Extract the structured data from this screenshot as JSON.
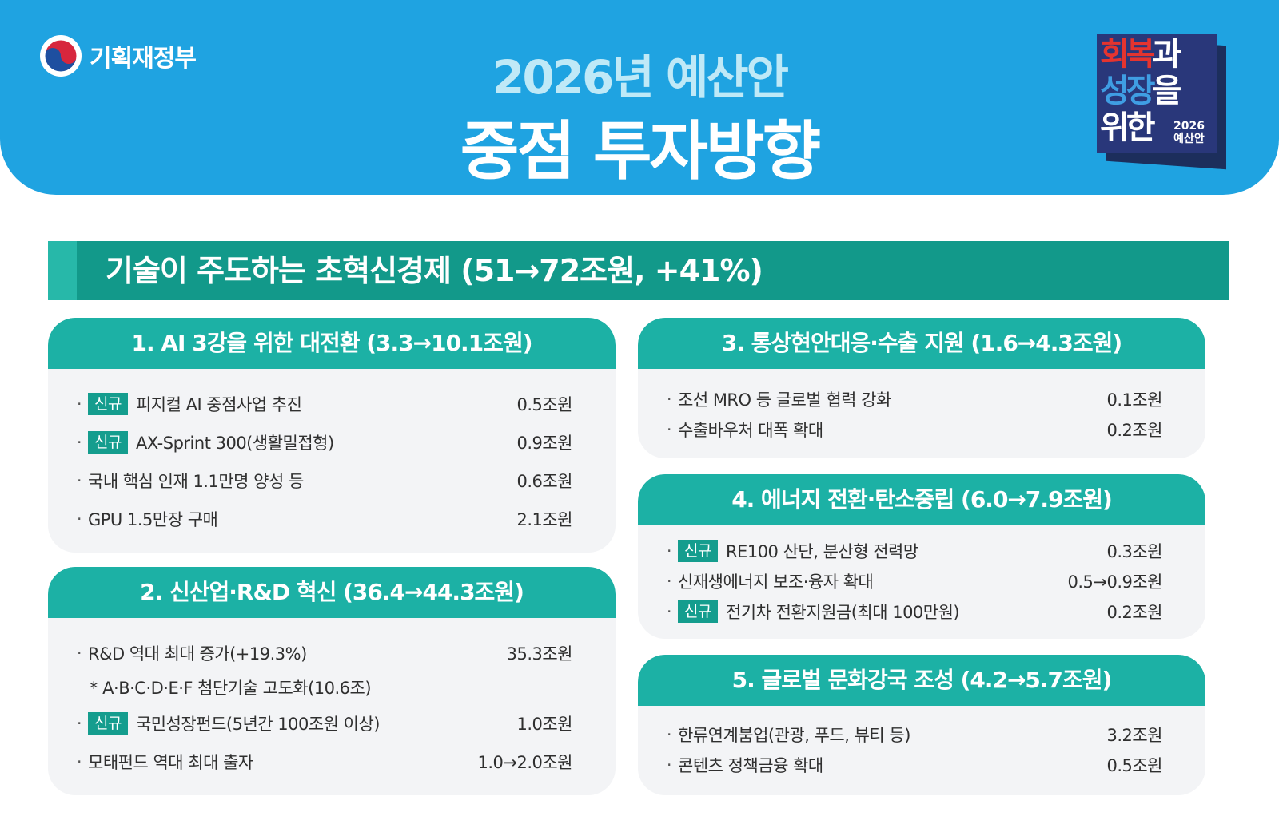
{
  "header": {
    "org_name": "기획재정부",
    "title_year": "2026년 예산안",
    "title_main": "중점 투자방향",
    "badge": {
      "line1_red": "회복",
      "line1_white": "과",
      "line2_blue": "성장",
      "line2_white": "을",
      "line3_white": "위한",
      "year": "2026",
      "year_sub": "예산안"
    }
  },
  "banner": {
    "title": "기술이 주도하는 초혁신경제 (51→72조원, +41%)"
  },
  "tag_new": "신규",
  "cards": {
    "c1": {
      "title": "1. AI 3강을 위한 대전환 (3.3→10.1조원)",
      "items": [
        {
          "label": "피지컬 AI 중점사업 추진",
          "value": "0.5조원"
        },
        {
          "label": "AX-Sprint 300(생활밀접형)",
          "value": "0.9조원"
        },
        {
          "label": "국내 핵심 인재 1.1만명 양성 등",
          "value": "0.6조원"
        },
        {
          "label": "GPU 1.5만장 구매",
          "value": "2.1조원"
        }
      ]
    },
    "c2": {
      "title": "2. 신산업·R&D 혁신 (36.4→44.3조원)",
      "items": [
        {
          "label": "R&D 역대 최대 증가(+19.3%)",
          "value": "35.3조원"
        },
        {
          "label": "국민성장펀드(5년간 100조원 이상)",
          "value": "1.0조원"
        },
        {
          "label": "모태펀드 역대 최대 출자",
          "value": "1.0→2.0조원"
        }
      ],
      "note": "* A·B·C·D·E·F 첨단기술 고도화(10.6조)"
    },
    "c3": {
      "title": "3. 통상현안대응·수출 지원 (1.6→4.3조원)",
      "items": [
        {
          "label": "조선 MRO 등 글로벌 협력 강화",
          "value": "0.1조원"
        },
        {
          "label": "수출바우처 대폭 확대",
          "value": "0.2조원"
        }
      ]
    },
    "c4": {
      "title": "4. 에너지 전환·탄소중립 (6.0→7.9조원)",
      "items": [
        {
          "label": "RE100 산단, 분산형 전력망",
          "value": "0.3조원"
        },
        {
          "label": "신재생에너지 보조·융자 확대",
          "value": "0.5→0.9조원"
        },
        {
          "label": "전기차 전환지원금(최대 100만원)",
          "value": "0.2조원"
        }
      ]
    },
    "c5": {
      "title": "5. 글로벌 문화강국 조성 (4.2→5.7조원)",
      "items": [
        {
          "label": "한류연계붐업(관광, 푸드, 뷰티 등)",
          "value": "3.2조원"
        },
        {
          "label": "콘텐츠 정책금융 확대",
          "value": "0.5조원"
        }
      ]
    }
  },
  "colors": {
    "header_blue": "#1fa3e1",
    "banner_teal": "#12998a",
    "card_head_teal": "#1cb1a5",
    "tag_teal": "#149d8e",
    "card_bg": "#f3f4f6"
  }
}
